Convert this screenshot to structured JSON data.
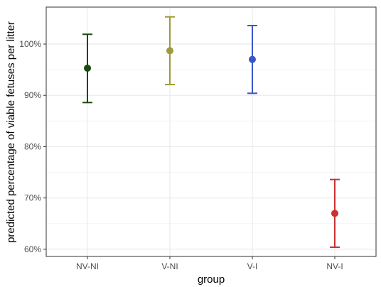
{
  "chart_data": {
    "type": "scatter",
    "title": "",
    "xlabel": "group",
    "ylabel": "predicted percentage of viable fetuses per litter",
    "categories": [
      "NV-NI",
      "V-NI",
      "V-I",
      "NV-I"
    ],
    "values": [
      95.3,
      98.7,
      97.0,
      67.0
    ],
    "lower": [
      88.6,
      92.1,
      90.4,
      60.4
    ],
    "upper": [
      101.9,
      105.3,
      103.6,
      73.6
    ],
    "colors": [
      "#1a4a0e",
      "#a09a3c",
      "#3a55c8",
      "#c83232"
    ],
    "yticks": [
      60,
      70,
      80,
      90,
      100
    ],
    "ytick_labels": [
      "60%",
      "70%",
      "80%",
      "90%",
      "100%"
    ],
    "ylim": [
      58.6,
      107.2
    ],
    "grid": true,
    "error_bars": true,
    "legend": "none"
  }
}
